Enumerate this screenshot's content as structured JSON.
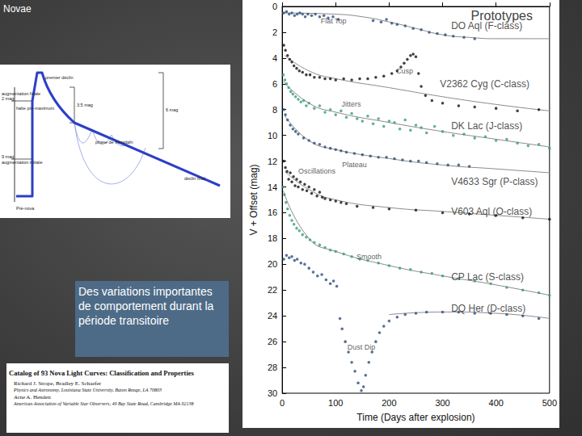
{
  "slide": {
    "title": "Novae",
    "textbox": "Des variations importantes de comportement durant la période transitoire",
    "paper": {
      "title": "Catalog of 93 Nova Light Curves: Classification and Properties",
      "authors1": "Richard J. Strope, Bradley E. Schaefer",
      "affiliation1": "Physics and Astronomy, Louisiana State University, Baton Rouge, LA 70803",
      "authors2": "Arne A. Henden",
      "affiliation2": "American Association of Variable Star Observers, 49 Bay State Road, Cambridge MA 02138"
    },
    "diagram": {
      "labels": [
        "augmentation finale",
        "2 mag",
        "halte pré-maximum",
        "premier déclin",
        "3.5 mag",
        "phase de transition",
        "6 mag",
        "9 mag",
        "augmentation initiale",
        "déclin final",
        "Pré-nova"
      ]
    }
  },
  "chart_data": {
    "type": "scatter",
    "title": "Prototypes",
    "x_label": "Time (Days after explosion)",
    "y_label": "V + Offset (mag)",
    "xlim": [
      0,
      500
    ],
    "xticks": [
      0,
      100,
      200,
      300,
      400,
      500
    ],
    "ylim": [
      0,
      30
    ],
    "yticks": [
      0,
      2,
      4,
      6,
      8,
      10,
      12,
      14,
      16,
      18,
      20,
      22,
      24,
      26,
      28,
      30
    ],
    "inverted_y": true,
    "grid": false,
    "marker": "circle",
    "feature_labels": [
      {
        "text": "Flat Top",
        "x": 72,
        "y": 1.1
      },
      {
        "text": "Cusp",
        "x": 213,
        "y": 5.0
      },
      {
        "text": "Jitters",
        "x": 111,
        "y": 7.6
      },
      {
        "text": "Plateau",
        "x": 112,
        "y": 12.3
      },
      {
        "text": "Oscillations",
        "x": 30,
        "y": 12.8
      },
      {
        "text": "Smooth",
        "x": 139,
        "y": 19.4
      },
      {
        "text": "Dust Dip",
        "x": 122,
        "y": 26.4
      }
    ],
    "series": [
      {
        "name": "DO Aql (F-class)",
        "color": "#2b4c7a",
        "name_at": [
          316,
          1.5
        ],
        "x": [
          3,
          8,
          13,
          18,
          23,
          28,
          33,
          38,
          43,
          48,
          55,
          62,
          70,
          78,
          86,
          95,
          105,
          170,
          185,
          195,
          205,
          215,
          230,
          245,
          260,
          275,
          290,
          305,
          320,
          340,
          360
        ],
        "values": [
          0.5,
          0.4,
          0.6,
          0.5,
          0.7,
          0.6,
          0.5,
          0.6,
          0.8,
          0.6,
          0.7,
          0.6,
          0.8,
          0.7,
          0.9,
          0.8,
          1.0,
          1.1,
          1.2,
          1.0,
          1.3,
          1.4,
          1.5,
          1.7,
          1.8,
          2.0,
          2.1,
          2.2,
          2.3,
          2.4,
          2.5
        ],
        "fit_x": [
          0,
          100,
          150,
          200,
          250,
          300,
          350,
          400,
          500
        ],
        "fit": [
          0.5,
          0.6,
          0.8,
          1.2,
          1.7,
          2.2,
          2.4,
          2.5,
          2.5
        ]
      },
      {
        "name": "V2362 Cyg (C-class)",
        "color": "#111111",
        "name_at": [
          295,
          6.0
        ],
        "x": [
          3,
          6,
          10,
          14,
          18,
          22,
          27,
          32,
          38,
          45,
          52,
          60,
          70,
          80,
          90,
          100,
          115,
          130,
          145,
          160,
          175,
          190,
          205,
          215,
          222,
          228,
          234,
          240,
          245,
          250,
          255,
          260,
          268,
          280,
          300,
          330,
          360,
          400,
          440,
          480
        ],
        "values": [
          3.0,
          3.4,
          3.8,
          4.1,
          4.3,
          4.6,
          4.8,
          5.0,
          5.1,
          5.3,
          5.3,
          5.5,
          5.5,
          5.6,
          5.6,
          5.7,
          5.6,
          5.7,
          5.6,
          5.6,
          5.5,
          5.4,
          5.2,
          5.0,
          4.7,
          4.4,
          4.1,
          3.8,
          3.7,
          3.9,
          5.2,
          6.2,
          6.9,
          7.3,
          7.5,
          7.7,
          7.8,
          7.9,
          8.1,
          8.0
        ],
        "fit_x": [
          5,
          50,
          100,
          200,
          300,
          400,
          500
        ],
        "fit": [
          3.8,
          5.0,
          5.6,
          6.3,
          7.0,
          7.6,
          8.1
        ]
      },
      {
        "name": "DK Lac (J-class)",
        "color": "#3a9a7e",
        "name_at": [
          316,
          9.3
        ],
        "x": [
          2,
          5,
          8,
          12,
          16,
          20,
          25,
          30,
          35,
          40,
          45,
          50,
          60,
          70,
          80,
          90,
          100,
          110,
          120,
          130,
          140,
          150,
          160,
          170,
          180,
          190,
          200,
          210,
          220,
          230,
          240,
          250,
          260,
          270,
          285,
          300,
          320,
          340,
          360,
          380,
          400,
          420,
          440,
          460,
          480,
          500
        ],
        "values": [
          5.3,
          5.7,
          6.0,
          6.3,
          6.6,
          6.8,
          7.0,
          7.2,
          7.4,
          7.3,
          7.7,
          7.5,
          7.9,
          7.7,
          8.2,
          8.0,
          8.4,
          8.1,
          8.6,
          8.3,
          8.7,
          8.9,
          8.5,
          9.1,
          8.7,
          9.3,
          8.9,
          9.0,
          9.5,
          8.8,
          9.6,
          9.2,
          9.4,
          9.8,
          9.3,
          9.7,
          10.0,
          9.9,
          10.2,
          10.1,
          10.4,
          10.3,
          10.6,
          10.8,
          10.7,
          11.0
        ],
        "fit_x": [
          2,
          50,
          100,
          200,
          300,
          400,
          500
        ],
        "fit": [
          5.8,
          7.5,
          8.2,
          9.0,
          9.7,
          10.3,
          10.9
        ]
      },
      {
        "name": "V4633 Sgr (P-class)",
        "color": "#2b4c7a",
        "name_at": [
          316,
          13.6
        ],
        "x": [
          3,
          6,
          10,
          15,
          20,
          25,
          30,
          40,
          50,
          60,
          70,
          80,
          90,
          100,
          110,
          120,
          135,
          150,
          165,
          180,
          195,
          210,
          225,
          240,
          255,
          270,
          290,
          310,
          330,
          350
        ],
        "values": [
          8.0,
          8.4,
          8.8,
          9.2,
          9.5,
          9.7,
          9.9,
          10.2,
          10.4,
          10.6,
          10.7,
          10.9,
          11.0,
          11.1,
          11.2,
          11.3,
          11.4,
          11.5,
          11.6,
          11.7,
          11.7,
          11.8,
          11.9,
          12.0,
          12.0,
          12.1,
          12.2,
          12.3,
          12.3,
          12.4
        ],
        "fit_x": [
          5,
          50,
          100,
          200,
          300,
          400,
          500
        ],
        "fit": [
          8.5,
          10.4,
          11.1,
          11.8,
          12.3,
          12.6,
          12.9
        ]
      },
      {
        "name": "V603 Aql (O-class)",
        "color": "#111111",
        "name_at": [
          316,
          15.9
        ],
        "x": [
          3,
          6,
          9,
          12,
          15,
          18,
          21,
          24,
          27,
          30,
          34,
          38,
          42,
          46,
          50,
          55,
          60,
          65,
          70,
          75,
          80,
          90,
          100,
          110,
          120,
          140,
          170,
          200,
          250,
          300,
          350,
          400,
          450,
          500
        ],
        "values": [
          12.0,
          12.5,
          12.8,
          13.4,
          12.9,
          13.6,
          13.2,
          13.9,
          13.4,
          14.0,
          13.6,
          14.2,
          13.8,
          14.3,
          14.0,
          14.5,
          14.2,
          14.7,
          14.4,
          14.8,
          14.9,
          15.0,
          15.1,
          15.2,
          15.3,
          15.5,
          15.6,
          15.7,
          15.8,
          16.0,
          16.1,
          16.2,
          16.4,
          16.5
        ],
        "fit_x": [
          5,
          50,
          100,
          200,
          300,
          400,
          500
        ],
        "fit": [
          12.8,
          14.2,
          15.0,
          15.6,
          15.9,
          16.2,
          16.5
        ]
      },
      {
        "name": "CP Lac (S-class)",
        "color": "#3a9a7e",
        "name_at": [
          316,
          21.0
        ],
        "x": [
          2,
          4,
          7,
          10,
          14,
          18,
          22,
          27,
          32,
          38,
          45,
          52,
          60,
          70,
          80,
          90,
          100,
          115,
          130,
          145,
          160,
          180,
          200,
          220,
          240,
          260,
          280,
          300,
          330,
          360,
          390,
          420,
          450,
          480,
          500
        ],
        "values": [
          14.0,
          14.6,
          15.2,
          15.7,
          16.2,
          16.6,
          16.9,
          17.2,
          17.4,
          17.7,
          17.9,
          18.1,
          18.3,
          18.5,
          18.7,
          18.9,
          19.0,
          19.2,
          19.4,
          19.6,
          19.7,
          19.9,
          20.1,
          20.3,
          20.4,
          20.6,
          20.7,
          20.9,
          21.1,
          21.3,
          21.5,
          21.8,
          22.0,
          22.2,
          22.4
        ],
        "fit_x": [
          2,
          50,
          100,
          200,
          300,
          400,
          500
        ],
        "fit": [
          14.3,
          18.0,
          19.0,
          20.1,
          20.9,
          21.6,
          22.4
        ]
      },
      {
        "name": "DQ Her (D-class)",
        "color": "#2b4c7a",
        "name_at": [
          316,
          23.4
        ],
        "x": [
          3,
          8,
          13,
          18,
          23,
          28,
          35,
          42,
          50,
          58,
          66,
          74,
          82,
          90,
          96,
          102,
          108,
          112,
          118,
          124,
          130,
          136,
          142,
          148,
          152,
          156,
          162,
          168,
          175,
          182,
          190,
          200,
          215,
          230,
          250,
          270,
          300,
          330,
          360,
          390,
          420,
          450,
          480
        ],
        "values": [
          19.6,
          19.3,
          19.5,
          19.4,
          19.7,
          19.6,
          19.9,
          20.0,
          20.3,
          20.6,
          20.9,
          20.8,
          21.2,
          21.5,
          21.3,
          21.7,
          24.2,
          25.0,
          26.0,
          26.8,
          27.6,
          28.3,
          29.2,
          29.8,
          29.5,
          28.6,
          27.6,
          26.8,
          26.0,
          25.3,
          24.8,
          24.4,
          24.1,
          23.9,
          23.8,
          23.7,
          23.7,
          23.7,
          23.8,
          23.8,
          23.9,
          24.0,
          24.2
        ],
        "fit_x": [
          200,
          300,
          400,
          500
        ],
        "fit": [
          23.9,
          23.7,
          23.8,
          24.2
        ]
      }
    ]
  }
}
